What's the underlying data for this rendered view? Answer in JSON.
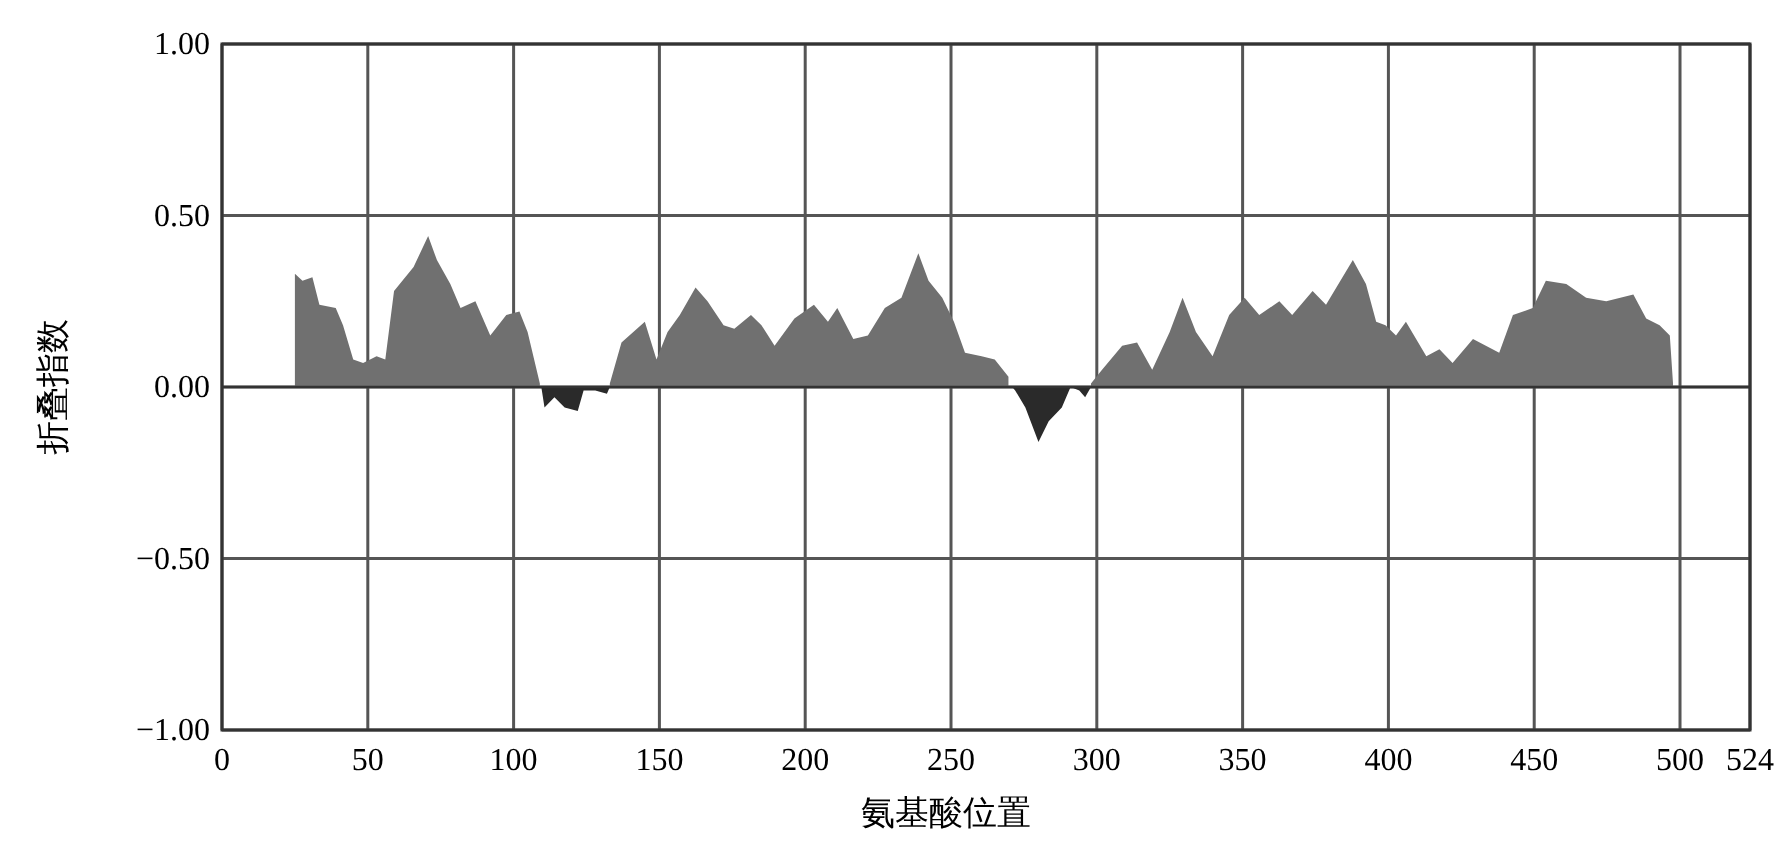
{
  "chart_data": {
    "type": "area",
    "xlabel": "氨基酸位置",
    "ylabel": "折叠指数",
    "xlim": [
      0,
      524
    ],
    "xticks": [
      0,
      50,
      100,
      150,
      200,
      250,
      300,
      350,
      400,
      450,
      500,
      524
    ],
    "ylim": [
      -1,
      1
    ],
    "yticks": [
      {
        "value": 1,
        "label": "1.00"
      },
      {
        "value": 0.5,
        "label": "0.50"
      },
      {
        "value": 0,
        "label": "0.00"
      },
      {
        "value": -0.5,
        "label": "−0.50"
      },
      {
        "value": -1,
        "label": "−1.00"
      }
    ],
    "grid": true,
    "series": [
      {
        "color": "#707070",
        "x": [
          25,
          27.6,
          31,
          33.4,
          39,
          41.5,
          45,
          48.4,
          53,
          56,
          59,
          65.7,
          70.7,
          73.7,
          78.3,
          81.8,
          86.9,
          92,
          97.5,
          102,
          104.8,
          109
        ],
        "values": [
          0.33,
          0.31,
          0.32,
          0.24,
          0.23,
          0.18,
          0.08,
          0.07,
          0.09,
          0.08,
          0.28,
          0.35,
          0.44,
          0.37,
          0.3,
          0.23,
          0.25,
          0.15,
          0.21,
          0.22,
          0.16,
          0.01
        ]
      },
      {
        "color": "#707070",
        "x": [
          133,
          137,
          145,
          149,
          152.8,
          157,
          162.4,
          166.5,
          172,
          175.7,
          181.4,
          185,
          189.5,
          196.3,
          203,
          207.8,
          211,
          216.5,
          221.5,
          227.3,
          233,
          238.8,
          242.3,
          247,
          251,
          254.8,
          260.5,
          265,
          269.7
        ],
        "values": [
          0.01,
          0.13,
          0.19,
          0.08,
          0.16,
          0.21,
          0.29,
          0.25,
          0.18,
          0.17,
          0.21,
          0.18,
          0.12,
          0.2,
          0.24,
          0.19,
          0.23,
          0.14,
          0.15,
          0.23,
          0.26,
          0.39,
          0.31,
          0.26,
          0.19,
          0.1,
          0.09,
          0.08,
          0.03
        ]
      },
      {
        "color": "#707070",
        "x": [
          298,
          301.8,
          308.7,
          313.8,
          319,
          325,
          329.4,
          334,
          339.7,
          345.4,
          350.7,
          355.7,
          362.6,
          367,
          374,
          378.6,
          387.8,
          392.3,
          395.8,
          399,
          402.6,
          406,
          413,
          417.5,
          422,
          429,
          438,
          442.7,
          449.5,
          454,
          461,
          467.8,
          474.7,
          484,
          488.4,
          493,
          496.5,
          497.6
        ],
        "values": [
          0.01,
          0.05,
          0.12,
          0.13,
          0.05,
          0.16,
          0.26,
          0.16,
          0.09,
          0.21,
          0.26,
          0.21,
          0.25,
          0.21,
          0.28,
          0.24,
          0.37,
          0.3,
          0.19,
          0.18,
          0.15,
          0.19,
          0.09,
          0.11,
          0.07,
          0.14,
          0.1,
          0.21,
          0.23,
          0.31,
          0.3,
          0.26,
          0.25,
          0.27,
          0.2,
          0.18,
          0.15,
          0.01
        ]
      },
      {
        "color": "#2a2a2a",
        "x": [
          109.5,
          110.6,
          114,
          117.5,
          122,
          124,
          128,
          132,
          133
        ],
        "values": [
          0,
          -0.06,
          -0.03,
          -0.06,
          -0.07,
          -0.01,
          -0.01,
          -0.02,
          0
        ]
      },
      {
        "color": "#2a2a2a",
        "x": [
          271,
          272,
          275.5,
          280,
          283.5,
          288,
          291,
          294,
          296,
          298
        ],
        "values": [
          0,
          -0.01,
          -0.06,
          -0.16,
          -0.1,
          -0.06,
          0,
          -0.01,
          -0.03,
          0
        ]
      }
    ]
  }
}
